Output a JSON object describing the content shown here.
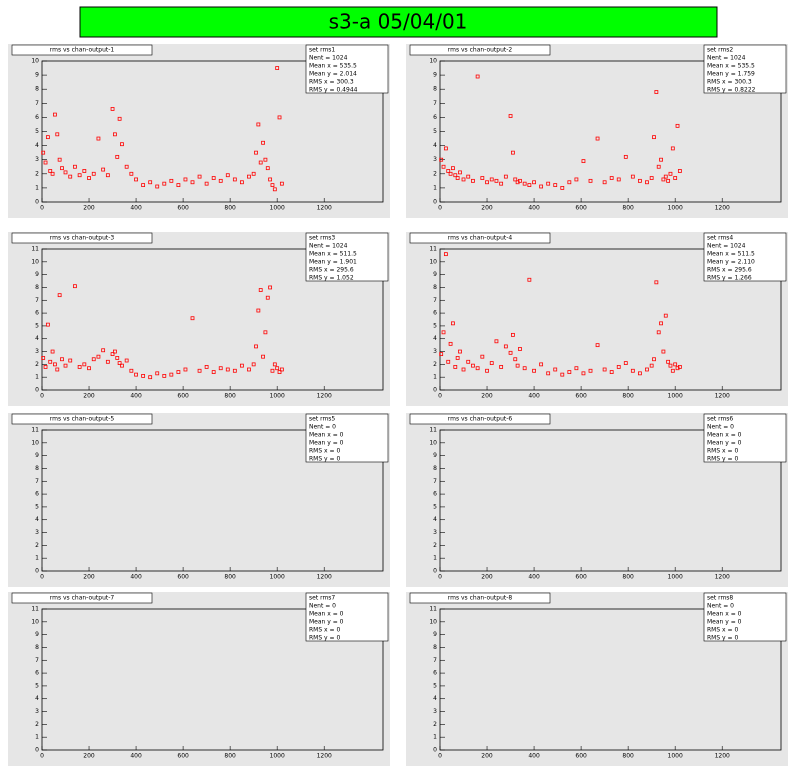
{
  "title": "s3-a 05/04/01",
  "chart_data": [
    {
      "type": "scatter",
      "title": "rms vs chan-output-1",
      "stats_title": "set rms1",
      "stats": [
        "Nent = 1024",
        "Mean x = 535.5",
        "Mean y = 2.014",
        "RMS x = 300.3",
        "RMS y = 0.4944"
      ],
      "color": "#ff0000",
      "xlim": [
        0,
        1450
      ],
      "xticks": [
        0,
        200,
        400,
        600,
        800,
        1000,
        1200
      ],
      "ylim": [
        0,
        10
      ],
      "yticks": [
        0,
        1,
        2,
        3,
        4,
        5,
        6,
        7,
        8,
        9,
        10
      ],
      "x": [
        5,
        15,
        25,
        35,
        45,
        55,
        65,
        75,
        85,
        100,
        120,
        140,
        160,
        180,
        200,
        220,
        240,
        260,
        280,
        300,
        310,
        320,
        330,
        340,
        360,
        380,
        400,
        430,
        460,
        490,
        520,
        550,
        580,
        610,
        640,
        670,
        700,
        730,
        760,
        790,
        820,
        850,
        880,
        900,
        910,
        920,
        930,
        940,
        950,
        960,
        970,
        980,
        990,
        1000,
        1010,
        1020
      ],
      "y": [
        3.5,
        2.8,
        4.6,
        2.2,
        2.0,
        6.2,
        4.8,
        3.0,
        2.4,
        2.1,
        1.8,
        2.5,
        1.9,
        2.2,
        1.7,
        2.0,
        4.5,
        2.3,
        1.9,
        6.6,
        4.8,
        3.2,
        5.9,
        4.1,
        2.5,
        2.0,
        1.6,
        1.2,
        1.4,
        1.1,
        1.3,
        1.5,
        1.2,
        1.6,
        1.4,
        1.8,
        1.3,
        1.7,
        1.5,
        1.9,
        1.6,
        1.4,
        1.8,
        2.0,
        3.5,
        5.5,
        2.8,
        4.2,
        3.0,
        2.4,
        1.6,
        1.2,
        0.9,
        9.5,
        6.0,
        1.3
      ]
    },
    {
      "type": "scatter",
      "title": "rms vs chan-output-2",
      "stats_title": "set rms2",
      "stats": [
        "Nent = 1024",
        "Mean x = 535.5",
        "Mean y = 1.759",
        "RMS x = 300.3",
        "RMS y = 0.8222"
      ],
      "color": "#ff0000",
      "xlim": [
        0,
        1450
      ],
      "xticks": [
        0,
        200,
        400,
        600,
        800,
        1000,
        1200
      ],
      "ylim": [
        0,
        10
      ],
      "yticks": [
        0,
        1,
        2,
        3,
        4,
        5,
        6,
        7,
        8,
        9,
        10
      ],
      "x": [
        5,
        15,
        25,
        35,
        45,
        55,
        65,
        75,
        85,
        100,
        120,
        140,
        160,
        180,
        200,
        220,
        240,
        260,
        280,
        300,
        310,
        320,
        330,
        340,
        360,
        380,
        400,
        430,
        460,
        490,
        520,
        550,
        580,
        610,
        640,
        670,
        700,
        730,
        760,
        790,
        820,
        850,
        880,
        900,
        910,
        920,
        930,
        940,
        950,
        960,
        970,
        980,
        990,
        1000,
        1010,
        1020
      ],
      "y": [
        3.0,
        2.5,
        3.8,
        2.2,
        2.0,
        2.4,
        1.9,
        1.7,
        2.1,
        1.6,
        1.8,
        1.5,
        8.9,
        1.7,
        1.4,
        1.6,
        1.5,
        1.3,
        1.8,
        6.1,
        3.5,
        1.6,
        1.4,
        1.5,
        1.3,
        1.2,
        1.4,
        1.1,
        1.3,
        1.2,
        1.0,
        1.4,
        1.6,
        2.9,
        1.5,
        4.5,
        1.4,
        1.7,
        1.6,
        3.2,
        1.8,
        1.5,
        1.4,
        1.7,
        4.6,
        7.8,
        2.5,
        3.0,
        1.6,
        1.8,
        1.5,
        2.0,
        3.8,
        1.7,
        5.4,
        2.2
      ]
    },
    {
      "type": "scatter",
      "title": "rms vs chan-output-3",
      "stats_title": "set rms3",
      "stats": [
        "Nent = 1024",
        "Mean x = 511.5",
        "Mean y = 1.901",
        "RMS x = 295.6",
        "RMS y = 1.052"
      ],
      "color": "#ff0000",
      "xlim": [
        0,
        1450
      ],
      "xticks": [
        0,
        200,
        400,
        600,
        800,
        1000,
        1200
      ],
      "ylim": [
        0,
        11
      ],
      "yticks": [
        0,
        1,
        2,
        3,
        4,
        5,
        6,
        7,
        8,
        9,
        10,
        11
      ],
      "x": [
        5,
        15,
        25,
        35,
        45,
        55,
        65,
        75,
        85,
        100,
        120,
        140,
        160,
        180,
        200,
        220,
        240,
        260,
        280,
        300,
        310,
        320,
        330,
        340,
        360,
        380,
        400,
        430,
        460,
        490,
        520,
        550,
        580,
        610,
        640,
        670,
        700,
        730,
        760,
        790,
        820,
        850,
        880,
        900,
        910,
        920,
        930,
        940,
        950,
        960,
        970,
        980,
        990,
        1000,
        1010,
        1020
      ],
      "y": [
        2.5,
        1.8,
        5.1,
        2.2,
        3.0,
        2.0,
        1.6,
        7.4,
        2.4,
        1.9,
        2.3,
        8.1,
        1.8,
        2.0,
        1.7,
        2.4,
        2.6,
        3.1,
        2.2,
        2.8,
        3.0,
        2.5,
        2.1,
        1.9,
        2.3,
        1.5,
        1.2,
        1.1,
        1.0,
        1.3,
        1.1,
        1.2,
        1.4,
        1.6,
        5.6,
        1.5,
        1.8,
        1.4,
        1.7,
        1.6,
        1.5,
        1.9,
        1.6,
        2.0,
        3.4,
        6.2,
        7.8,
        2.6,
        4.5,
        7.2,
        8.0,
        1.5,
        2.0,
        1.7,
        1.4,
        1.6
      ]
    },
    {
      "type": "scatter",
      "title": "rms vs chan-output-4",
      "stats_title": "set rms4",
      "stats": [
        "Nent = 1024",
        "Mean x = 511.5",
        "Mean y = 2.110",
        "RMS x = 295.6",
        "RMS y = 1.266"
      ],
      "color": "#ff0000",
      "xlim": [
        0,
        1450
      ],
      "xticks": [
        0,
        200,
        400,
        600,
        800,
        1000,
        1200
      ],
      "ylim": [
        0,
        11
      ],
      "yticks": [
        0,
        1,
        2,
        3,
        4,
        5,
        6,
        7,
        8,
        9,
        10,
        11
      ],
      "x": [
        5,
        15,
        25,
        35,
        45,
        55,
        65,
        75,
        85,
        100,
        120,
        140,
        160,
        180,
        200,
        220,
        240,
        260,
        280,
        300,
        310,
        320,
        330,
        340,
        360,
        380,
        400,
        430,
        460,
        490,
        520,
        550,
        580,
        610,
        640,
        670,
        700,
        730,
        760,
        790,
        820,
        850,
        880,
        900,
        910,
        920,
        930,
        940,
        950,
        960,
        970,
        980,
        990,
        1000,
        1010,
        1020
      ],
      "y": [
        2.8,
        4.5,
        10.6,
        2.2,
        3.6,
        5.2,
        1.8,
        2.5,
        3.0,
        1.6,
        2.2,
        1.9,
        1.7,
        2.6,
        1.5,
        2.1,
        3.8,
        1.8,
        3.4,
        2.9,
        4.3,
        2.4,
        1.9,
        3.2,
        1.7,
        8.6,
        1.5,
        2.0,
        1.3,
        1.6,
        1.2,
        1.4,
        1.7,
        1.3,
        1.5,
        3.5,
        1.6,
        1.4,
        1.8,
        2.1,
        1.5,
        1.3,
        1.6,
        1.9,
        2.4,
        8.4,
        4.5,
        5.2,
        3.0,
        5.8,
        2.2,
        1.9,
        1.5,
        2.0,
        1.7,
        1.8
      ]
    },
    {
      "type": "scatter",
      "title": "rms vs chan-output-5",
      "stats_title": "set rms5",
      "stats": [
        "Nent = 0",
        "Mean x = 0",
        "Mean y = 0",
        "RMS x = 0",
        "RMS y = 0"
      ],
      "color": "#ff0000",
      "xlim": [
        0,
        1450
      ],
      "xticks": [
        0,
        200,
        400,
        600,
        800,
        1000,
        1200
      ],
      "ylim": [
        0,
        11
      ],
      "yticks": [
        0,
        1,
        2,
        3,
        4,
        5,
        6,
        7,
        8,
        9,
        10,
        11
      ],
      "x": [],
      "y": []
    },
    {
      "type": "scatter",
      "title": "rms vs chan-output-6",
      "stats_title": "set rms6",
      "stats": [
        "Nent = 0",
        "Mean x = 0",
        "Mean y = 0",
        "RMS x = 0",
        "RMS y = 0"
      ],
      "color": "#ff0000",
      "xlim": [
        0,
        1450
      ],
      "xticks": [
        0,
        200,
        400,
        600,
        800,
        1000,
        1200
      ],
      "ylim": [
        0,
        11
      ],
      "yticks": [
        0,
        1,
        2,
        3,
        4,
        5,
        6,
        7,
        8,
        9,
        10,
        11
      ],
      "x": [],
      "y": []
    },
    {
      "type": "scatter",
      "title": "rms vs chan-output-7",
      "stats_title": "set rms7",
      "stats": [
        "Nent = 0",
        "Mean x = 0",
        "Mean y = 0",
        "RMS x = 0",
        "RMS y = 0"
      ],
      "color": "#ff0000",
      "xlim": [
        0,
        1450
      ],
      "xticks": [
        0,
        200,
        400,
        600,
        800,
        1000,
        1200
      ],
      "ylim": [
        0,
        11
      ],
      "yticks": [
        0,
        1,
        2,
        3,
        4,
        5,
        6,
        7,
        8,
        9,
        10,
        11
      ],
      "x": [],
      "y": []
    },
    {
      "type": "scatter",
      "title": "rms vs chan-output-8",
      "stats_title": "set rms8",
      "stats": [
        "Nent = 0",
        "Mean x = 0",
        "Mean y = 0",
        "RMS x = 0",
        "RMS y = 0"
      ],
      "color": "#ff0000",
      "xlim": [
        0,
        1450
      ],
      "xticks": [
        0,
        200,
        400,
        600,
        800,
        1000,
        1200
      ],
      "ylim": [
        0,
        11
      ],
      "yticks": [
        0,
        1,
        2,
        3,
        4,
        5,
        6,
        7,
        8,
        9,
        10,
        11
      ],
      "x": [],
      "y": []
    }
  ]
}
